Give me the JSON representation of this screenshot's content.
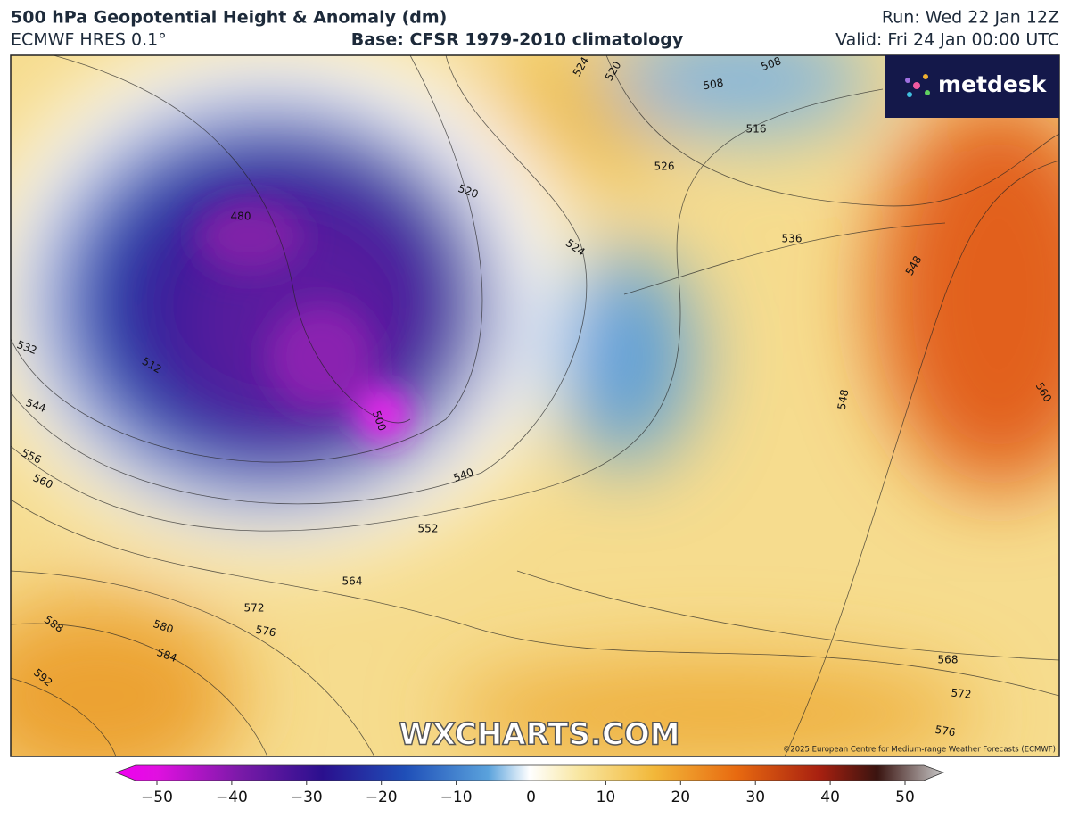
{
  "header": {
    "title": "500 hPa Geopotential Height & Anomaly (dm)",
    "model": "ECMWF HRES 0.1°",
    "base": "Base: CFSR 1979-2010 climatology",
    "run": "Run: Wed 22 Jan 12Z",
    "valid": "Valid: Fri 24 Jan 00:00 UTC"
  },
  "logo": "metdesk",
  "watermark": "WXCHARTS.COM",
  "copyright": "©2025 European Centre for Medium-range Weather Forecasts (ECMWF)",
  "contour_labels": [
    524,
    520,
    508,
    508,
    516,
    520,
    524,
    526,
    536,
    548,
    480,
    500,
    512,
    532,
    544,
    556,
    560,
    540,
    552,
    564,
    572,
    576,
    580,
    584,
    588,
    592,
    548,
    560,
    568,
    572,
    576
  ],
  "colorbar": {
    "ticks": [
      {
        "value": -50,
        "label": "−50"
      },
      {
        "value": -40,
        "label": "−40"
      },
      {
        "value": -30,
        "label": "−30"
      },
      {
        "value": -20,
        "label": "−20"
      },
      {
        "value": -10,
        "label": "−10"
      },
      0,
      10,
      20,
      30,
      40,
      50
    ]
  }
}
